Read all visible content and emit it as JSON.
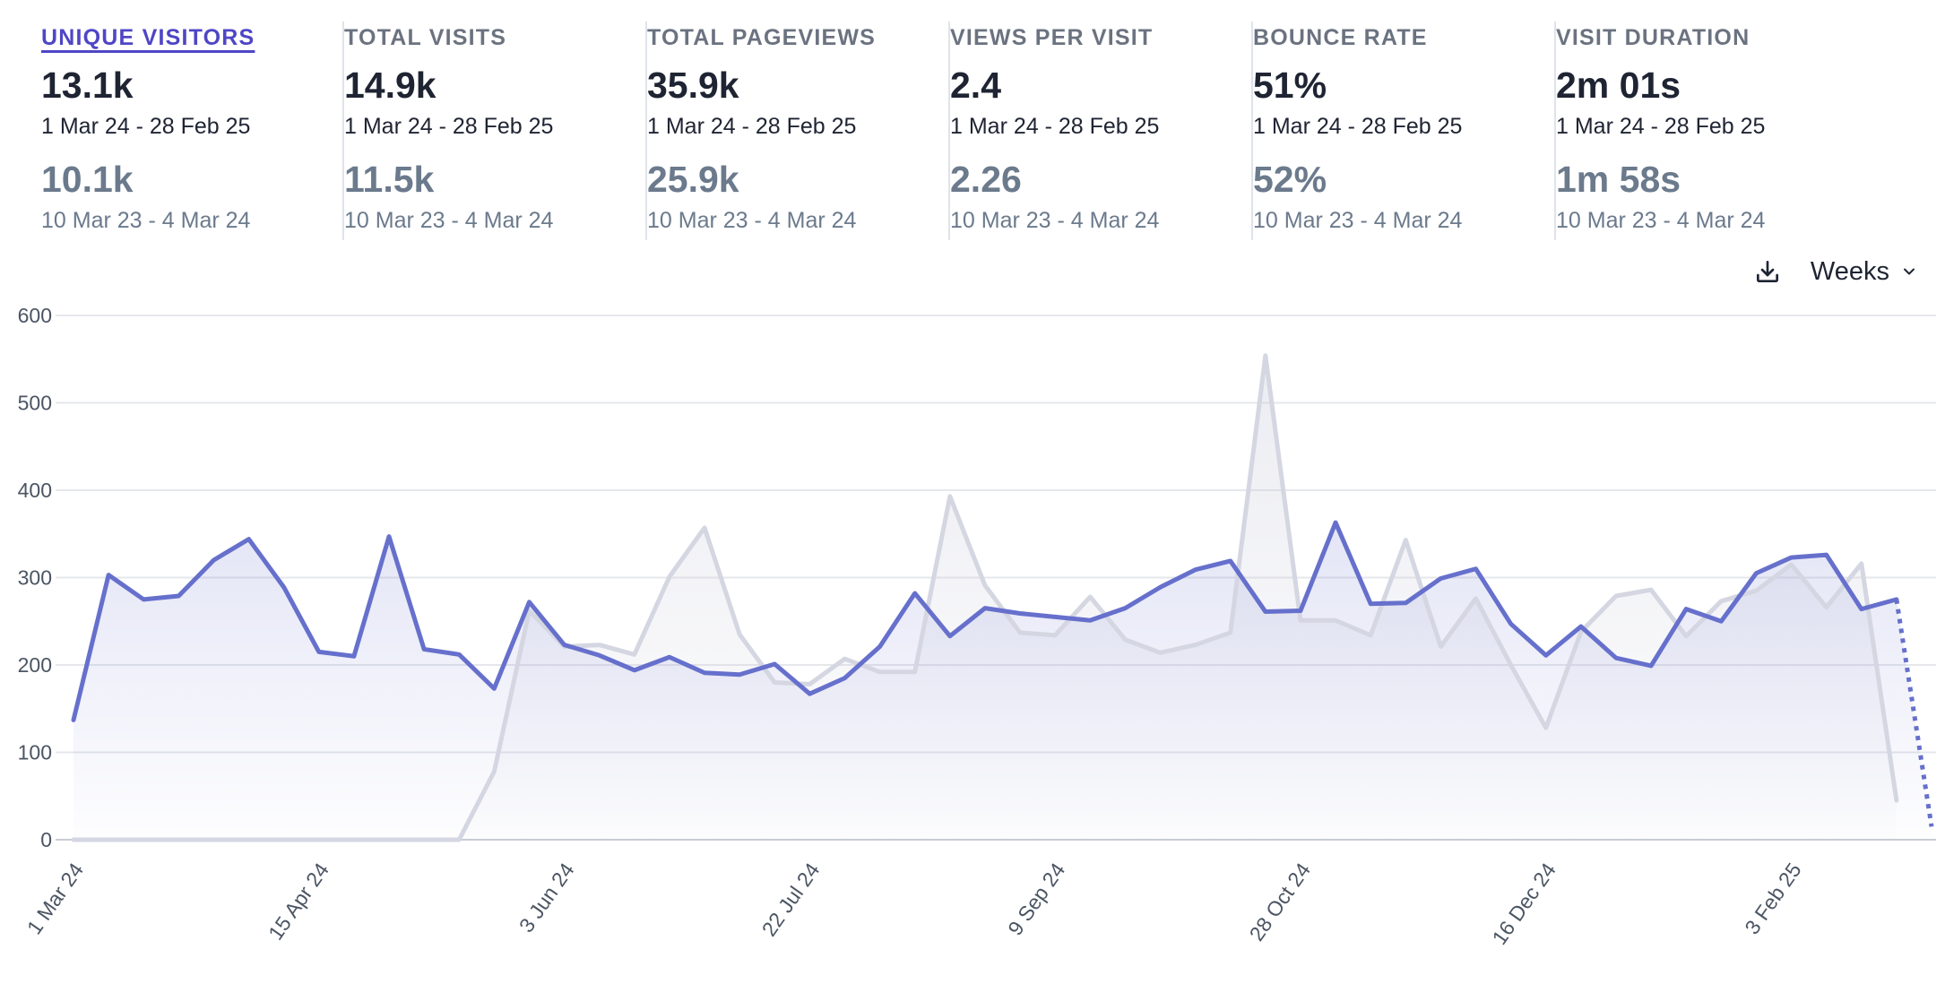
{
  "metrics": [
    {
      "label": "UNIQUE VISITORS",
      "value": "13.1k",
      "range": "1 Mar 24 - 28 Feb 25",
      "prev_value": "10.1k",
      "prev_range": "10 Mar 23 - 4 Mar 24",
      "active": true
    },
    {
      "label": "TOTAL VISITS",
      "value": "14.9k",
      "range": "1 Mar 24 - 28 Feb 25",
      "prev_value": "11.5k",
      "prev_range": "10 Mar 23 - 4 Mar 24",
      "active": false
    },
    {
      "label": "TOTAL PAGEVIEWS",
      "value": "35.9k",
      "range": "1 Mar 24 - 28 Feb 25",
      "prev_value": "25.9k",
      "prev_range": "10 Mar 23 - 4 Mar 24",
      "active": false
    },
    {
      "label": "VIEWS PER VISIT",
      "value": "2.4",
      "range": "1 Mar 24 - 28 Feb 25",
      "prev_value": "2.26",
      "prev_range": "10 Mar 23 - 4 Mar 24",
      "active": false
    },
    {
      "label": "BOUNCE RATE",
      "value": "51%",
      "range": "1 Mar 24 - 28 Feb 25",
      "prev_value": "52%",
      "prev_range": "10 Mar 23 - 4 Mar 24",
      "active": false
    },
    {
      "label": "VISIT DURATION",
      "value": "2m 01s",
      "range": "1 Mar 24 - 28 Feb 25",
      "prev_value": "1m 58s",
      "prev_range": "10 Mar 23 - 4 Mar 24",
      "active": false
    }
  ],
  "toolbar": {
    "download_icon": "download-icon",
    "interval_label": "Weeks",
    "interval_icon": "chevron-down-icon"
  },
  "colors": {
    "current": "#6670cc",
    "previous": "#d4d6e1",
    "accent": "#4f46c5",
    "grid": "#e5e7eb"
  },
  "chart_data": {
    "type": "line",
    "x_ticks": [
      "1 Mar 24",
      "15 Apr 24",
      "3 Jun 24",
      "22 Jul 24",
      "9 Sep 24",
      "28 Oct 24",
      "16 Dec 24",
      "3 Feb 25"
    ],
    "y_ticks": [
      0,
      100,
      200,
      300,
      400,
      500,
      600
    ],
    "ylim": [
      0,
      600
    ],
    "grid": true,
    "series": [
      {
        "values": [
          137,
          303,
          275,
          279,
          320,
          344,
          289,
          215,
          210,
          347,
          218,
          212,
          173,
          272,
          223,
          211,
          194,
          209,
          191,
          189,
          201,
          167,
          185,
          221,
          282,
          233,
          265,
          259,
          255,
          251,
          265,
          289,
          309,
          319,
          261,
          262,
          363,
          270,
          271,
          299,
          310,
          247,
          211,
          244,
          208,
          199,
          264,
          250,
          305,
          323,
          326,
          264,
          275,
          15
        ]
      },
      {
        "values": [
          0,
          0,
          0,
          0,
          0,
          0,
          0,
          0,
          0,
          0,
          0,
          0,
          78,
          262,
          221,
          223,
          212,
          301,
          357,
          235,
          180,
          178,
          207,
          192,
          192,
          393,
          291,
          237,
          234,
          278,
          229,
          214,
          223,
          237,
          554,
          251,
          251,
          234,
          343,
          221,
          276,
          200,
          128,
          238,
          279,
          286,
          233,
          273,
          285,
          315,
          266,
          316,
          45
        ]
      }
    ]
  }
}
